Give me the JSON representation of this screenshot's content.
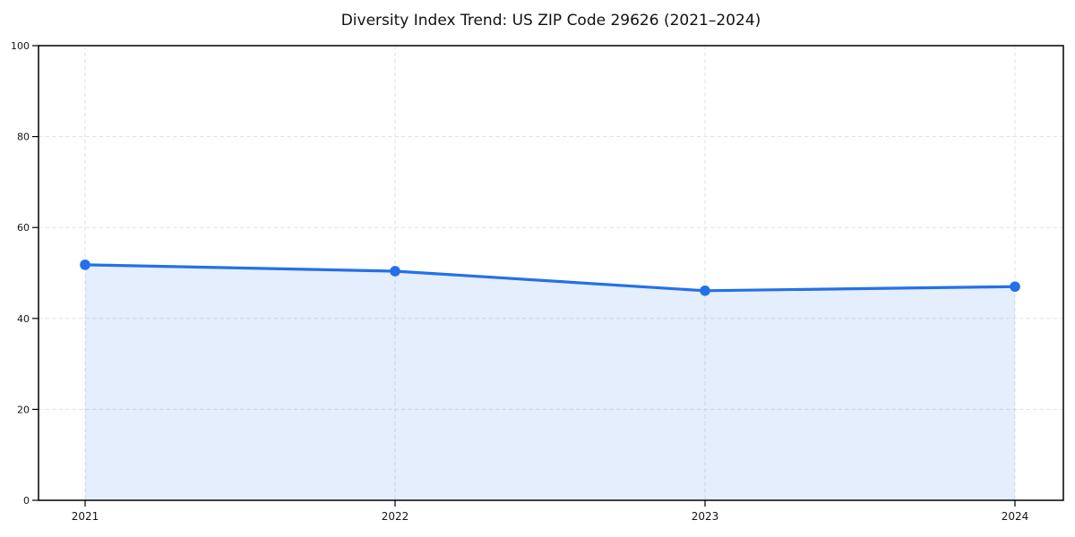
{
  "page": {
    "background_color": "#ffffff"
  },
  "chart_data": {
    "type": "area",
    "title": "Diversity Index Trend: US ZIP Code 29626 (2021–2024)",
    "categories": [
      "2021",
      "2022",
      "2023",
      "2024"
    ],
    "series": [
      {
        "name": "Diversity Index",
        "values": [
          51.8,
          50.4,
          46.1,
          47.0
        ]
      }
    ],
    "xlabel": "",
    "ylabel": "",
    "ylim": [
      0,
      100
    ],
    "yticks": [
      0,
      20,
      40,
      60,
      80,
      100
    ],
    "grid": true,
    "grid_style": "dashed",
    "legend": false,
    "marker": "circle",
    "colors": {
      "line": "#2470e8",
      "marker": "#2470e8",
      "fill": "rgba(36, 112, 232, 0.12)",
      "grid": "#e1e1e1",
      "spine": "#000000",
      "tick_text": "#141414",
      "title_text": "#111111"
    }
  }
}
